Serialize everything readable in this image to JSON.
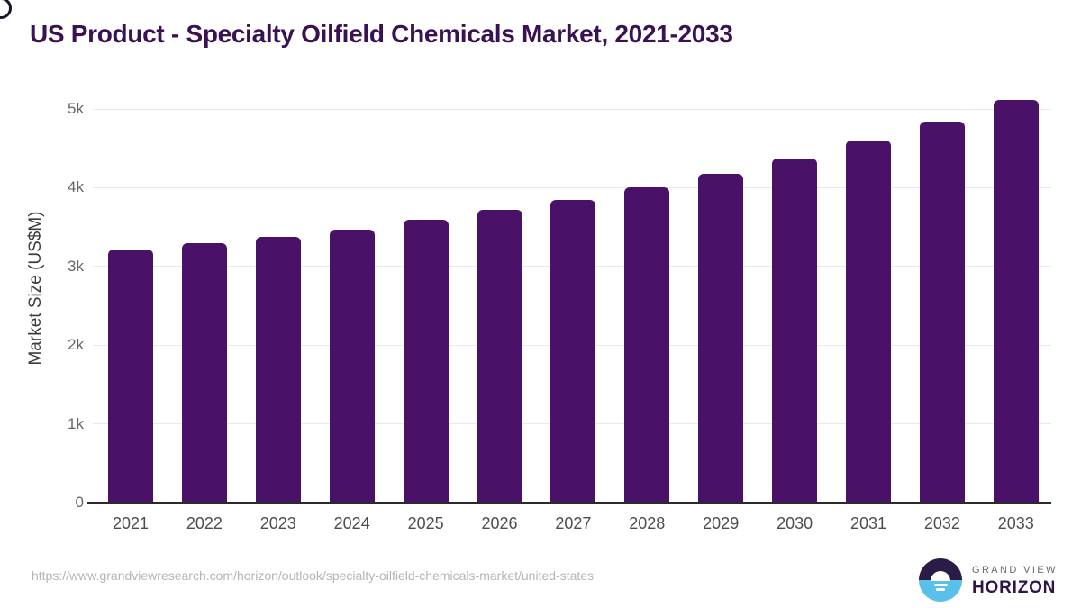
{
  "title": "US Product - Specialty Oilfield Chemicals Market, 2021-2033",
  "chart_data": {
    "type": "bar",
    "categories": [
      "2021",
      "2022",
      "2023",
      "2024",
      "2025",
      "2026",
      "2027",
      "2028",
      "2029",
      "2030",
      "2031",
      "2032",
      "2033"
    ],
    "values": [
      3210,
      3290,
      3380,
      3470,
      3590,
      3715,
      3850,
      4010,
      4180,
      4375,
      4595,
      4835,
      5115
    ],
    "title": "US Product - Specialty Oilfield Chemicals Market, 2021-2033",
    "xlabel": "",
    "ylabel": "Market Size (US$M)",
    "ytick_labels": [
      "0",
      "1k",
      "2k",
      "3k",
      "4k",
      "5k"
    ],
    "ytick_values": [
      0,
      1000,
      2000,
      3000,
      4000,
      5000
    ],
    "ylim": [
      0,
      5300
    ],
    "grid": true,
    "legend": "none",
    "bar_color": "#4a1168"
  },
  "colors": {
    "bar": "#4a1168",
    "title_text": "#3a1253",
    "axis_line": "#2b2b2b",
    "gridline": "#e9e9e9",
    "tick_text": "#666666",
    "category_text": "#4d4d4d",
    "url_text": "#b5b5b5",
    "logo_dark": "#2a1c47",
    "logo_blue": "#5ac0ea"
  },
  "footer": {
    "source_url": "https://www.grandviewresearch.com/horizon/outlook/specialty-oilfield-chemicals-market/united-states",
    "logo": {
      "top_text": "GRAND VIEW",
      "bottom_text": "HORIZON"
    }
  }
}
